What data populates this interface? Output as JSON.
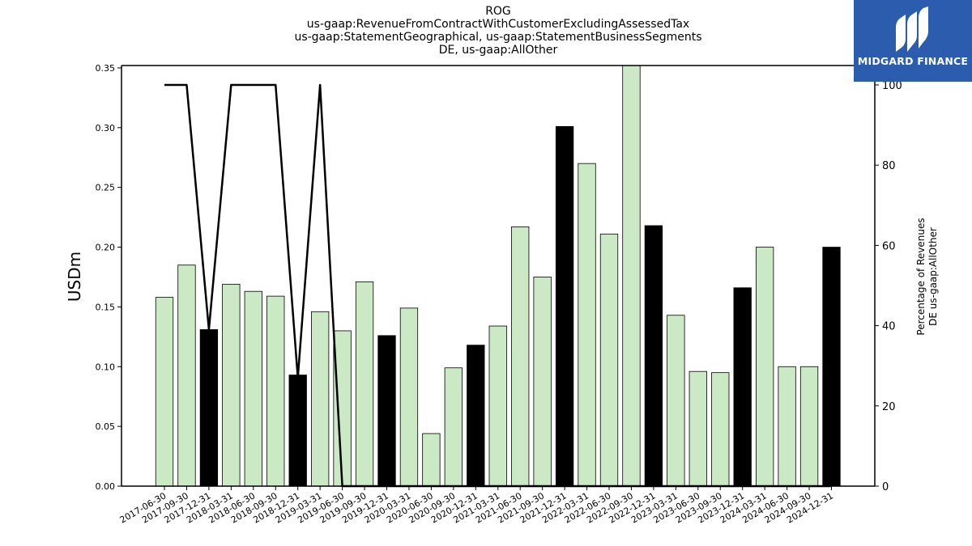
{
  "chart_data": {
    "type": "bar",
    "title_lines": [
      "ROG",
      "us-gaap:RevenueFromContractWithCustomerExcludingAssessedTax",
      "us-gaap:StatementGeographical, us-gaap:StatementBusinessSegments",
      "DE, us-gaap:AllOther"
    ],
    "ylabel": "USDm",
    "y2label_lines": [
      "Percentage of Revenues",
      "DE us-gaap:AllOther"
    ],
    "ylim": [
      0,
      0.352
    ],
    "y2lim": [
      0,
      100
    ],
    "y_ticks": [
      "0.00",
      "0.05",
      "0.10",
      "0.15",
      "0.20",
      "0.25",
      "0.30",
      "0.35"
    ],
    "y2_ticks": [
      "0",
      "20",
      "40",
      "60",
      "80",
      "100"
    ],
    "categories": [
      "2017-06-30",
      "2017-09-30",
      "2017-12-31",
      "2018-03-31",
      "2018-06-30",
      "2018-09-30",
      "2018-12-31",
      "2019-03-31",
      "2019-06-30",
      "2019-09-30",
      "2019-12-31",
      "2020-03-31",
      "2020-06-30",
      "2020-09-30",
      "2020-12-31",
      "2021-03-31",
      "2021-06-30",
      "2021-09-30",
      "2021-12-31",
      "2022-03-31",
      "2022-06-30",
      "2022-09-30",
      "2022-12-31",
      "2023-03-31",
      "2023-06-30",
      "2023-09-30",
      "2023-12-31",
      "2024-03-31",
      "2024-06-30",
      "2024-09-30",
      "2024-12-31"
    ],
    "series": [
      {
        "values": [
          0.158,
          0.185,
          0.131,
          0.169,
          0.163,
          0.159,
          0.093,
          0.146,
          0.13,
          0.171,
          0.126,
          0.149,
          0.044,
          0.099,
          0.118,
          0.134,
          0.217,
          0.175,
          0.301,
          0.27,
          0.211,
          0.354,
          0.218,
          0.143,
          0.096,
          0.095,
          0.166,
          0.2,
          0.1,
          0.1,
          0.2
        ],
        "highlight": [
          false,
          false,
          true,
          false,
          false,
          false,
          true,
          false,
          false,
          false,
          true,
          false,
          false,
          false,
          true,
          false,
          false,
          false,
          true,
          false,
          false,
          false,
          true,
          false,
          false,
          false,
          true,
          false,
          false,
          false,
          true
        ]
      },
      {
        "type": "line",
        "values": [
          100,
          100,
          39,
          100,
          100,
          100,
          27,
          100,
          0,
          0,
          0,
          0,
          0,
          0,
          0,
          0,
          0,
          0,
          0,
          0,
          0,
          0,
          0,
          0,
          0,
          0,
          0,
          0,
          0,
          0,
          0
        ]
      }
    ],
    "colors": {
      "bar": "#cce9c5",
      "bar_highlight": "#000000",
      "line": "#000000"
    }
  },
  "logo": {
    "text": "MIDGARD FINANCE",
    "background": "#2b5cae"
  }
}
